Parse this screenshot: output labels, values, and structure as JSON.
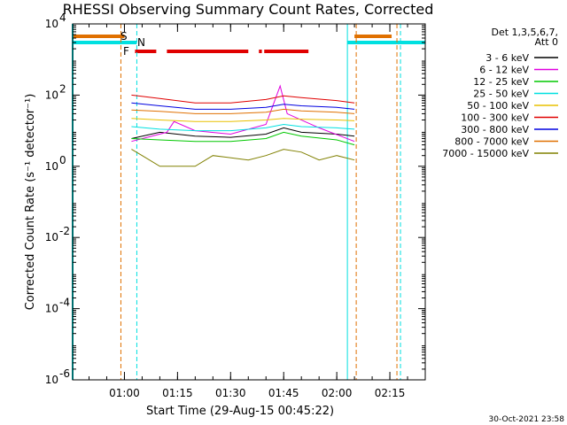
{
  "chart_data": {
    "type": "line",
    "title": "RHESSI Observing Summary Count Rates, Corrected",
    "xlabel": "Start Time (29-Aug-15 00:45:22)",
    "ylabel": "Corrected Count Rate (s⁻¹ detector⁻¹)",
    "y_scale": "log",
    "ylim": [
      1e-06,
      10000.0
    ],
    "y_ticks": [
      {
        "base": "10",
        "exp": "4",
        "value": 10000
      },
      {
        "base": "10",
        "exp": "2",
        "value": 100
      },
      {
        "base": "10",
        "exp": "0",
        "value": 1
      },
      {
        "base": "10",
        "exp": "-2",
        "value": 0.01
      },
      {
        "base": "10",
        "exp": "-4",
        "value": 0.0001
      },
      {
        "base": "10",
        "exp": "-6",
        "value": 1e-06
      }
    ],
    "xlim": [
      "00:45:22",
      "02:25:00"
    ],
    "x_ticks": [
      "01:00",
      "01:15",
      "01:30",
      "01:45",
      "02:00",
      "02:15"
    ],
    "grid": false,
    "legend": {
      "position": "right",
      "header_line1": "Det 1,3,5,6,7,",
      "header_line2": "Att 0"
    },
    "series": [
      {
        "name": "3 - 6 keV",
        "color": "#000000",
        "x": [
          "01:02",
          "01:10",
          "01:20",
          "01:30",
          "01:40",
          "01:45",
          "01:50",
          "02:00",
          "02:05"
        ],
        "y": [
          6,
          9,
          7,
          6.5,
          8,
          12,
          9,
          8,
          7
        ]
      },
      {
        "name": "6 - 12 keV",
        "color": "#e000e0",
        "x": [
          "01:02",
          "01:12",
          "01:14",
          "01:20",
          "01:30",
          "01:40",
          "01:44",
          "01:46",
          "01:55",
          "02:05"
        ],
        "y": [
          5,
          9,
          18,
          10,
          8,
          15,
          180,
          30,
          12,
          5
        ]
      },
      {
        "name": "12 - 25 keV",
        "color": "#00c800",
        "x": [
          "01:02",
          "01:10",
          "01:20",
          "01:30",
          "01:40",
          "01:45",
          "01:50",
          "02:00",
          "02:05"
        ],
        "y": [
          6,
          5.5,
          5,
          5,
          6,
          9,
          7,
          5.5,
          4
        ]
      },
      {
        "name": "25 - 50 keV",
        "color": "#00e0e0",
        "x": [
          "01:02",
          "01:10",
          "01:20",
          "01:30",
          "01:40",
          "01:45",
          "01:50",
          "02:00",
          "02:05"
        ],
        "y": [
          13,
          11,
          10,
          10,
          12,
          15,
          13,
          12,
          11
        ]
      },
      {
        "name": "50 - 100 keV",
        "color": "#e8c000",
        "x": [
          "01:02",
          "01:10",
          "01:20",
          "01:30",
          "01:40",
          "01:45",
          "01:50",
          "02:00",
          "02:05"
        ],
        "y": [
          22,
          20,
          18,
          18,
          20,
          22,
          21,
          20,
          19
        ]
      },
      {
        "name": "100 - 300 keV",
        "color": "#e00000",
        "x": [
          "01:02",
          "01:10",
          "01:20",
          "01:30",
          "01:40",
          "01:45",
          "01:50",
          "02:00",
          "02:05"
        ],
        "y": [
          100,
          80,
          60,
          60,
          75,
          95,
          85,
          70,
          60
        ]
      },
      {
        "name": "300 - 800 keV",
        "color": "#0000e0",
        "x": [
          "01:02",
          "01:10",
          "01:20",
          "01:30",
          "01:40",
          "01:45",
          "01:50",
          "02:00",
          "02:05"
        ],
        "y": [
          60,
          50,
          40,
          40,
          45,
          55,
          50,
          45,
          40
        ]
      },
      {
        "name": "800 - 7000 keV",
        "color": "#e07000",
        "x": [
          "01:02",
          "01:10",
          "01:20",
          "01:30",
          "01:40",
          "01:45",
          "01:50",
          "02:00",
          "02:05"
        ],
        "y": [
          38,
          35,
          30,
          30,
          33,
          40,
          36,
          33,
          30
        ]
      },
      {
        "name": "7000 - 15000 keV",
        "color": "#808000",
        "x": [
          "01:02",
          "01:05",
          "01:10",
          "01:20",
          "01:25",
          "01:35",
          "01:40",
          "01:45",
          "01:50",
          "01:55",
          "02:00",
          "02:05"
        ],
        "y": [
          3,
          2,
          1,
          1,
          2,
          1.5,
          2,
          3,
          2.5,
          1.5,
          2,
          1.5
        ]
      }
    ],
    "annotations": {
      "saa_label": "S",
      "night_label": "N",
      "flare_label": "F",
      "flag_colors": {
        "saa": "#e07000",
        "night": "#00e0e0",
        "flare": "#e00000"
      },
      "saa_intervals": [
        [
          "00:45:22",
          "01:00:00"
        ],
        [
          "02:05:00",
          "02:15:30"
        ]
      ],
      "night_intervals": [
        [
          "00:45:22",
          "01:03:30"
        ],
        [
          "02:03:00",
          "02:25:00"
        ]
      ],
      "flare_intervals": [
        [
          "01:03:00",
          "01:09:00"
        ],
        [
          "01:12:00",
          "01:35:00"
        ],
        [
          "01:38:00",
          "01:38:50"
        ],
        [
          "01:39:30",
          "01:52:00"
        ]
      ],
      "saa_lines": [
        "00:59:00",
        "02:05:30",
        "02:17:00"
      ],
      "night_lines": [
        "01:03:30",
        "02:03:00",
        "02:18:00"
      ]
    }
  },
  "timestamp": "30-Oct-2021 23:58"
}
